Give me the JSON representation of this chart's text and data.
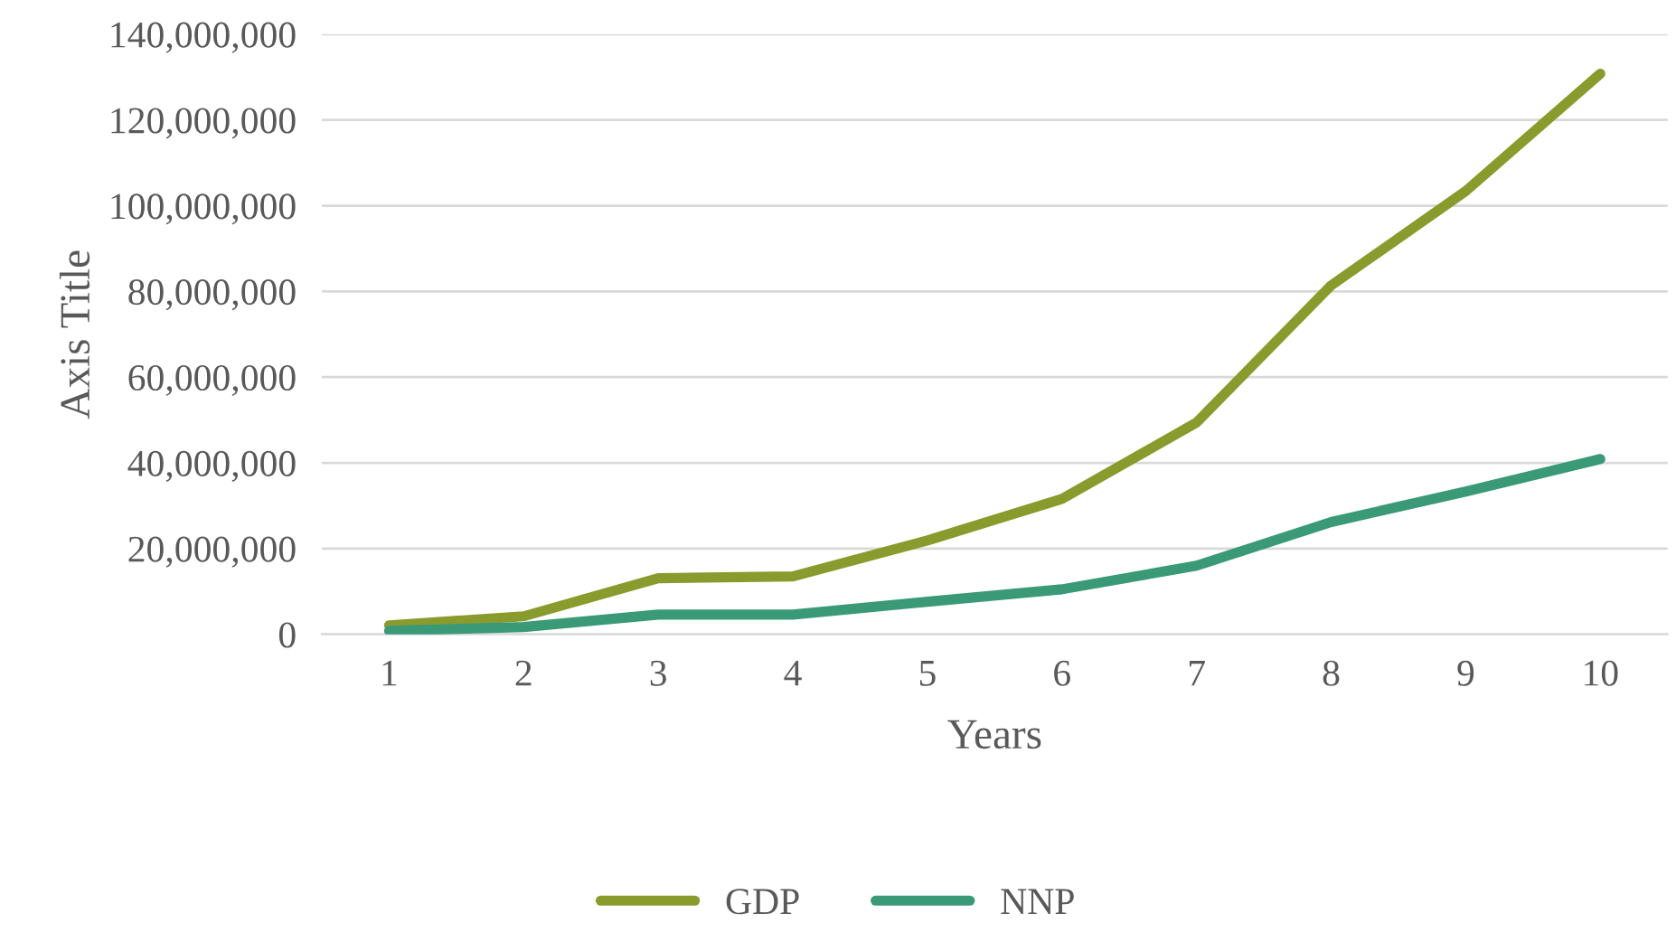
{
  "chart_data": {
    "type": "line",
    "xlabel": "Years",
    "ylabel": "Axis Title",
    "categories": [
      "1",
      "2",
      "3",
      "4",
      "5",
      "6",
      "7",
      "8",
      "9",
      "10"
    ],
    "series": [
      {
        "name": "GDP",
        "color": "#8a9b2e",
        "values": [
          2100000,
          4200000,
          13100000,
          13500000,
          21900000,
          31600000,
          49400000,
          81400000,
          103400000,
          130800000
        ]
      },
      {
        "name": "NNP",
        "color": "#3a9a77",
        "values": [
          800000,
          1700000,
          4600000,
          4600000,
          7600000,
          10500000,
          16000000,
          26200000,
          33300000,
          40900000
        ]
      }
    ],
    "ylim": [
      0,
      140000000
    ],
    "yticks": [
      {
        "value": 0,
        "label": "0"
      },
      {
        "value": 20000000,
        "label": "20,000,000"
      },
      {
        "value": 40000000,
        "label": "40,000,000"
      },
      {
        "value": 60000000,
        "label": "60,000,000"
      },
      {
        "value": 80000000,
        "label": "80,000,000"
      },
      {
        "value": 100000000,
        "label": "100,000,000"
      },
      {
        "value": 120000000,
        "label": "120,000,000"
      },
      {
        "value": 140000000,
        "label": "140,000,000"
      }
    ],
    "grid": "y",
    "legend": "bottom",
    "marker": "none",
    "line_style": "solid"
  }
}
